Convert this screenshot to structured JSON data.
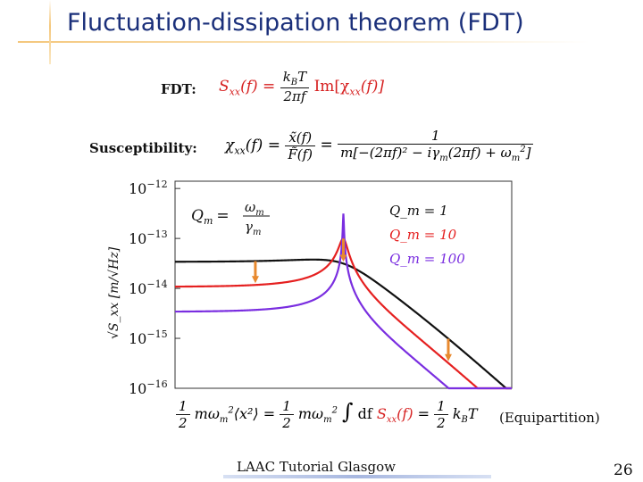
{
  "slide": {
    "title": "Fluctuation-dissipation theorem (FDT)",
    "footer": "LAAC Tutorial Glasgow",
    "page_number": "26"
  },
  "fdt": {
    "label": "FDT:",
    "lhs": "S",
    "lhs_sub": "xx",
    "lhs_arg": "(f) =",
    "num": "k",
    "num_sub": "B",
    "num_tail": "T",
    "den": "2πf",
    "rhs": "Im[χ",
    "rhs_sub": "xx",
    "rhs_tail": "(f)]"
  },
  "susceptibility": {
    "label": "Susceptibility:",
    "lhs": "χ",
    "lhs_sub": "xx",
    "lhs_arg": "(f) =",
    "num1": "x̃(f)",
    "den1": "F̃(f)",
    "eq": "=",
    "num2": "1",
    "den2": "m[−(2πf)² − iγ",
    "den2_sub": "m",
    "den2_tail": "(2πf) + ω",
    "den2_sub2": "m",
    "den2_sup2": "2",
    "den2_end": "]"
  },
  "equipartition": {
    "half1": "1",
    "half1_den": "2",
    "term1": "mω",
    "term1_sub": "m",
    "term1_sup": "2",
    "term1_tail": "⟨x²⟩ =",
    "half2": "1",
    "half2_den": "2",
    "term2": "mω",
    "term2_sub": "m",
    "term2_sup": "2",
    "integral": "∫",
    "df": "df",
    "s": "S",
    "s_sub": "xx",
    "s_arg": "(f)",
    "eq": "=",
    "half3": "1",
    "half3_den": "2",
    "kbt": "k",
    "kbt_sub": "B",
    "kbt_tail": "T",
    "note": "(Equipartition)"
  },
  "chart_data": {
    "type": "line",
    "x_scale": "log",
    "y_scale": "log",
    "ylabel": "√S_xx  [m/√Hz]",
    "y_ticks": [
      {
        "base": "10",
        "exp": "−12",
        "value": 1e-12
      },
      {
        "base": "10",
        "exp": "−13",
        "value": 1e-13
      },
      {
        "base": "10",
        "exp": "−14",
        "value": 1e-14
      },
      {
        "base": "10",
        "exp": "−15",
        "value": 1e-15
      },
      {
        "base": "10",
        "exp": "−16",
        "value": 1e-16
      }
    ],
    "ylim": [
      1e-16,
      1.4e-12
    ],
    "xlim_rel": [
      0.1,
      10
    ],
    "resonance_rel": 1,
    "amp0": 3.4e-14,
    "rolloff_start_rel": 2.4,
    "series": [
      {
        "name": "Q_m = 1",
        "Q": 1,
        "color": "#111111"
      },
      {
        "name": "Q_m = 10",
        "Q": 10,
        "color": "#e52020"
      },
      {
        "name": "Q_m = 100",
        "Q": 100,
        "color": "#7a2ee0"
      }
    ],
    "legend": {
      "position": "top-right"
    },
    "annotation": {
      "lhs": "Q",
      "lhs_sub": "m",
      "num": "ω",
      "num_sub": "m",
      "den": "γ",
      "den_sub": "m"
    },
    "arrows_color": "#e8892e"
  }
}
